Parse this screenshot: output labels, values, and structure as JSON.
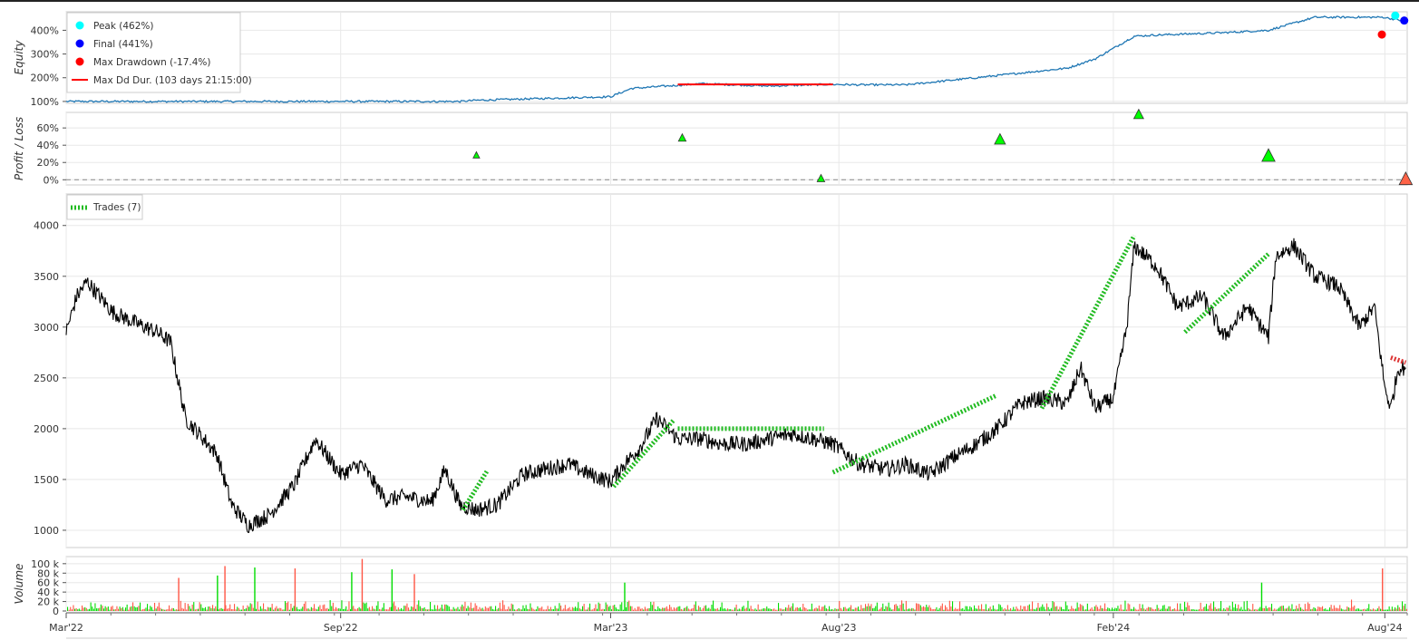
{
  "chart_data": [
    {
      "panel": "equity",
      "type": "line",
      "ylabel": "Equity",
      "yticks": [
        "100%",
        "200%",
        "300%",
        "400%"
      ],
      "ytick_values": [
        100,
        200,
        300,
        400
      ],
      "ylim": [
        92,
        478
      ],
      "series": [
        {
          "name": "Equity",
          "color": "#1f77b4",
          "x": [
            "2022-03-01",
            "2022-11-20",
            "2022-12-01",
            "2023-03-01",
            "2023-03-15",
            "2023-05-01",
            "2023-06-15",
            "2023-07-25",
            "2023-08-15",
            "2023-09-15",
            "2023-11-01",
            "2023-12-01",
            "2024-01-01",
            "2024-01-20",
            "2024-02-15",
            "2024-03-01",
            "2024-04-15",
            "2024-05-15",
            "2024-06-15",
            "2024-07-31",
            "2024-08-12"
          ],
          "y": [
            100,
            100,
            105,
            120,
            155,
            175,
            165,
            172,
            170,
            170,
            200,
            220,
            240,
            280,
            375,
            380,
            390,
            400,
            455,
            455,
            441
          ]
        }
      ],
      "markers": [
        {
          "label": "Peak (462%)",
          "x": "2024-08-08",
          "y": 462,
          "color": "#00ffff"
        },
        {
          "label": "Final (441%)",
          "x": "2024-08-14",
          "y": 441,
          "color": "#0000ff"
        },
        {
          "label": "Max Drawdown (-17.4%)",
          "x": "2024-07-30",
          "y": 382,
          "color": "#ff0000"
        }
      ],
      "segments": [
        {
          "label": "Max Dd Dur. (103 days 21:15:00)",
          "x0": "2023-04-15",
          "x1": "2023-07-28",
          "y": 172,
          "color": "#ff0000"
        }
      ]
    },
    {
      "panel": "profit_loss",
      "type": "scatter",
      "ylabel": "Profit / Loss",
      "yticks": [
        "0%",
        "20%",
        "40%",
        "60%"
      ],
      "ytick_values": [
        0,
        20,
        40,
        60
      ],
      "ylim": [
        -6,
        78
      ],
      "points": [
        {
          "x": "2022-12-01",
          "y": 28,
          "size": 6,
          "color": "#00ff00"
        },
        {
          "x": "2023-04-18",
          "y": 48,
          "size": 7,
          "color": "#00ff00"
        },
        {
          "x": "2023-07-20",
          "y": 1,
          "size": 7,
          "color": "#00ff00"
        },
        {
          "x": "2023-11-17",
          "y": 46,
          "size": 10,
          "color": "#00ff00"
        },
        {
          "x": "2024-02-18",
          "y": 75,
          "size": 9,
          "color": "#00ff00"
        },
        {
          "x": "2024-05-15",
          "y": 27,
          "size": 12,
          "color": "#00ff00"
        },
        {
          "x": "2024-08-15",
          "y": 0,
          "size": 12,
          "color": "#ff6347"
        }
      ]
    },
    {
      "panel": "price",
      "type": "line",
      "yticks": [
        "1000",
        "1500",
        "2000",
        "2500",
        "3000",
        "3500",
        "4000"
      ],
      "ytick_values": [
        1000,
        1500,
        2000,
        2500,
        3000,
        3500,
        4000
      ],
      "ylim": [
        830,
        4310
      ],
      "legend": [
        "Trades (7)"
      ],
      "series": [
        {
          "name": "Price",
          "color": "#000000",
          "x": [
            "2022-03-01",
            "2022-03-08",
            "2022-03-15",
            "2022-04-01",
            "2022-04-15",
            "2022-05-01",
            "2022-05-10",
            "2022-05-20",
            "2022-06-01",
            "2022-06-10",
            "2022-06-20",
            "2022-07-01",
            "2022-07-15",
            "2022-08-01",
            "2022-08-15",
            "2022-09-01",
            "2022-09-15",
            "2022-10-01",
            "2022-10-15",
            "2022-11-01",
            "2022-11-10",
            "2022-11-20",
            "2022-12-01",
            "2022-12-15",
            "2023-01-01",
            "2023-01-15",
            "2023-02-01",
            "2023-02-15",
            "2023-03-01",
            "2023-03-10",
            "2023-03-20",
            "2023-04-01",
            "2023-04-15",
            "2023-05-01",
            "2023-05-15",
            "2023-06-01",
            "2023-06-15",
            "2023-07-01",
            "2023-07-15",
            "2023-07-28",
            "2023-08-15",
            "2023-09-01",
            "2023-09-15",
            "2023-10-01",
            "2023-10-15",
            "2023-11-01",
            "2023-11-15",
            "2023-12-01",
            "2023-12-15",
            "2024-01-01",
            "2024-01-10",
            "2024-01-20",
            "2024-02-01",
            "2024-02-10",
            "2024-02-15",
            "2024-03-01",
            "2024-03-15",
            "2024-04-01",
            "2024-04-15",
            "2024-05-01",
            "2024-05-15",
            "2024-05-20",
            "2024-06-01",
            "2024-06-15",
            "2024-07-01",
            "2024-07-15",
            "2024-07-25",
            "2024-08-01",
            "2024-08-05",
            "2024-08-10",
            "2024-08-15"
          ],
          "y": [
            2950,
            3300,
            3450,
            3150,
            3050,
            2950,
            2850,
            2100,
            1900,
            1750,
            1250,
            1050,
            1150,
            1450,
            1900,
            1550,
            1650,
            1300,
            1330,
            1280,
            1600,
            1250,
            1200,
            1250,
            1550,
            1600,
            1650,
            1550,
            1480,
            1650,
            1800,
            2100,
            1900,
            1900,
            1850,
            1850,
            1900,
            1950,
            1900,
            1850,
            1650,
            1600,
            1650,
            1550,
            1700,
            1850,
            2000,
            2250,
            2300,
            2250,
            2600,
            2200,
            2300,
            3000,
            3800,
            3600,
            3200,
            3300,
            2900,
            3200,
            2900,
            3700,
            3800,
            3500,
            3400,
            3000,
            3200,
            2400,
            2200,
            2600,
            2600
          ]
        }
      ],
      "trades": [
        {
          "x0": "2022-11-22",
          "y0": 1200,
          "x1": "2022-12-08",
          "y1": 1580,
          "color": "#22bb22"
        },
        {
          "x0": "2023-03-03",
          "y0": 1430,
          "x1": "2023-04-12",
          "y1": 2080,
          "color": "#22bb22"
        },
        {
          "x0": "2023-04-15",
          "y0": 2000,
          "x1": "2023-07-22",
          "y1": 2000,
          "color": "#22bb22"
        },
        {
          "x0": "2023-07-28",
          "y0": 1570,
          "x1": "2023-11-15",
          "y1": 2330,
          "color": "#22bb22"
        },
        {
          "x0": "2023-12-15",
          "y0": 2200,
          "x1": "2024-02-15",
          "y1": 3900,
          "color": "#22bb22"
        },
        {
          "x0": "2024-03-20",
          "y0": 2950,
          "x1": "2024-05-15",
          "y1": 3720,
          "color": "#22bb22"
        },
        {
          "x0": "2024-08-05",
          "y0": 2700,
          "x1": "2024-08-15",
          "y1": 2650,
          "color": "#dd3333"
        }
      ]
    },
    {
      "panel": "volume",
      "type": "bar",
      "ylabel": "Volume",
      "yticks": [
        "0",
        "20 k",
        "40 k",
        "60 k",
        "80 k",
        "100 k"
      ],
      "ytick_values": [
        0,
        20000,
        40000,
        60000,
        80000,
        100000
      ],
      "ylim": [
        0,
        115000
      ],
      "up_color": "#00dd00",
      "down_color": "#ff5544",
      "spikes": [
        {
          "x": "2022-05-15",
          "v": 70000
        },
        {
          "x": "2022-06-10",
          "v": 75000
        },
        {
          "x": "2022-06-15",
          "v": 95000
        },
        {
          "x": "2022-07-05",
          "v": 92000
        },
        {
          "x": "2022-08-01",
          "v": 90000
        },
        {
          "x": "2022-09-08",
          "v": 82000
        },
        {
          "x": "2022-09-15",
          "v": 110000
        },
        {
          "x": "2022-10-05",
          "v": 88000
        },
        {
          "x": "2022-10-20",
          "v": 78000
        },
        {
          "x": "2023-03-10",
          "v": 60000
        },
        {
          "x": "2024-07-30",
          "v": 90000
        },
        {
          "x": "2024-05-10",
          "v": 60000
        }
      ]
    }
  ],
  "xaxis": {
    "ticks": [
      "Mar'22",
      "Sep'22",
      "Mar'23",
      "Aug'23",
      "Feb'24",
      "Aug'24"
    ],
    "tick_dates": [
      "2022-03-01",
      "2022-09-01",
      "2023-03-01",
      "2023-08-01",
      "2024-02-01",
      "2024-08-01"
    ],
    "range": [
      "2022-03-01",
      "2024-08-16"
    ]
  },
  "legend_equity": {
    "items": [
      "Peak (462%)",
      "Final (441%)",
      "Max Drawdown (-17.4%)",
      "Max Dd Dur. (103 days 21:15:00)"
    ],
    "colors": [
      "#00ffff",
      "#0000ff",
      "#ff0000",
      "#ff0000"
    ]
  },
  "legend_price": {
    "items": [
      "Trades (7)"
    ],
    "colors": [
      "#22bb22"
    ]
  }
}
